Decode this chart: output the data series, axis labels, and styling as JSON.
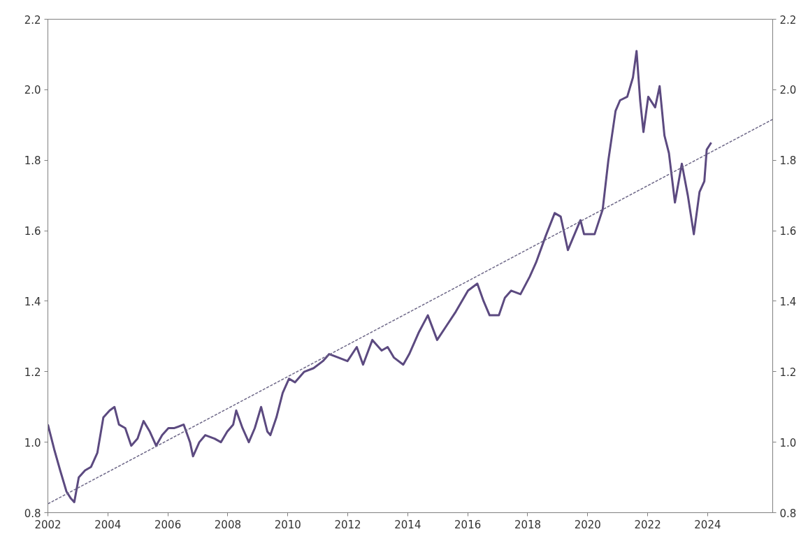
{
  "chart_data": {
    "type": "line",
    "xlim": [
      2002,
      2026.17
    ],
    "xticks": [
      2002,
      2004,
      2006,
      2008,
      2010,
      2012,
      2014,
      2016,
      2018,
      2020,
      2022,
      2024
    ],
    "ylim": [
      0.8,
      2.2
    ],
    "yticks": [
      {
        "value": 0.8,
        "label": "0.8"
      },
      {
        "value": 1.0,
        "label": "1.0"
      },
      {
        "value": 1.2,
        "label": "1.2"
      },
      {
        "value": 1.4,
        "label": "1.4"
      },
      {
        "value": 1.6,
        "label": "1.6"
      },
      {
        "value": 1.8,
        "label": "1.8"
      },
      {
        "value": 2.0,
        "label": "2.0"
      },
      {
        "value": 2.2,
        "label": "2.2"
      }
    ],
    "y2lim": [
      0.8,
      2.2
    ],
    "y2ticks": [
      {
        "value": 0.8,
        "label": "0.8"
      },
      {
        "value": 1.0,
        "label": "1.0"
      },
      {
        "value": 1.2,
        "label": "1.2"
      },
      {
        "value": 1.4,
        "label": "1.4"
      },
      {
        "value": 1.6,
        "label": "1.6"
      },
      {
        "value": 1.8,
        "label": "1.8"
      },
      {
        "value": 2.0,
        "label": "2.0"
      },
      {
        "value": 2.2,
        "label": "2.2"
      }
    ],
    "grid": false,
    "series": [
      {
        "color": "#5c4a80",
        "line_style": "solid",
        "x": [
          2002.0,
          2002.21,
          2002.41,
          2002.62,
          2002.77,
          2002.88,
          2003.03,
          2003.24,
          2003.44,
          2003.65,
          2003.85,
          2004.06,
          2004.22,
          2004.37,
          2004.58,
          2004.78,
          2004.99,
          2005.19,
          2005.4,
          2005.61,
          2005.81,
          2006.02,
          2006.22,
          2006.53,
          2006.74,
          2006.84,
          2007.05,
          2007.25,
          2007.56,
          2007.77,
          2007.98,
          2008.18,
          2008.28,
          2008.49,
          2008.7,
          2008.9,
          2009.11,
          2009.32,
          2009.42,
          2009.62,
          2009.83,
          2010.04,
          2010.24,
          2010.55,
          2010.86,
          2011.17,
          2011.38,
          2011.69,
          2011.99,
          2012.3,
          2012.51,
          2012.82,
          2013.13,
          2013.33,
          2013.54,
          2013.85,
          2014.05,
          2014.36,
          2014.67,
          2014.98,
          2015.29,
          2015.6,
          2016.01,
          2016.32,
          2016.53,
          2016.73,
          2017.04,
          2017.24,
          2017.45,
          2017.76,
          2018.07,
          2018.28,
          2018.6,
          2018.9,
          2019.1,
          2019.34,
          2019.76,
          2019.88,
          2020.23,
          2020.5,
          2020.69,
          2020.93,
          2021.08,
          2021.32,
          2021.51,
          2021.63,
          2021.75,
          2021.86,
          2022.02,
          2022.25,
          2022.4,
          2022.56,
          2022.71,
          2022.91,
          2023.14,
          2023.34,
          2023.54,
          2023.73,
          2023.89,
          2023.97,
          2024.12
        ],
        "values": [
          1.05,
          0.98,
          0.92,
          0.86,
          0.84,
          0.83,
          0.9,
          0.92,
          0.93,
          0.97,
          1.07,
          1.09,
          1.1,
          1.05,
          1.04,
          0.99,
          1.01,
          1.06,
          1.03,
          0.99,
          1.02,
          1.04,
          1.04,
          1.05,
          1.0,
          0.96,
          1.0,
          1.02,
          1.01,
          1.0,
          1.03,
          1.05,
          1.09,
          1.04,
          1.0,
          1.04,
          1.1,
          1.03,
          1.02,
          1.07,
          1.14,
          1.18,
          1.17,
          1.2,
          1.21,
          1.23,
          1.25,
          1.24,
          1.23,
          1.27,
          1.22,
          1.29,
          1.26,
          1.27,
          1.24,
          1.22,
          1.25,
          1.31,
          1.36,
          1.29,
          1.33,
          1.37,
          1.43,
          1.45,
          1.4,
          1.36,
          1.36,
          1.41,
          1.43,
          1.42,
          1.47,
          1.51,
          1.585,
          1.65,
          1.64,
          1.545,
          1.63,
          1.59,
          1.59,
          1.66,
          1.8,
          1.94,
          1.97,
          1.98,
          2.035,
          2.11,
          1.97,
          1.88,
          1.98,
          1.95,
          2.01,
          1.87,
          1.82,
          1.68,
          1.79,
          1.7,
          1.59,
          1.71,
          1.74,
          1.83,
          1.85
        ]
      },
      {
        "color": "#6e6888",
        "line_style": "dashed",
        "x": [
          2002,
          2026.17
        ],
        "values": [
          0.825,
          1.916
        ]
      }
    ]
  }
}
